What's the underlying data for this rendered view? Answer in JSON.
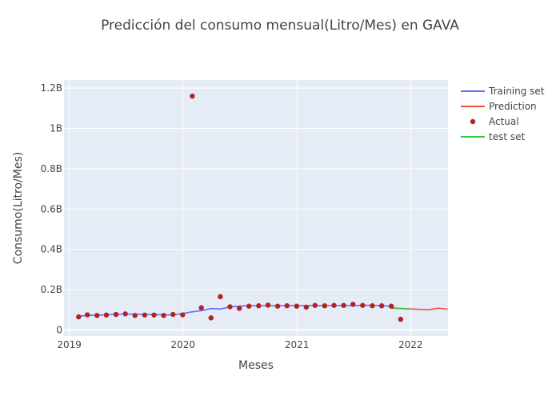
{
  "chart_data": {
    "type": "line",
    "title": "Predicción del consumo mensual(Litro/Mes) en GAVA",
    "xlabel": "Meses",
    "ylabel": "Consumo(Litro/Mes)",
    "xlim": [
      "2018-12-15",
      "2022-05-01"
    ],
    "ylim": [
      -0.03,
      1.24
    ],
    "y_unit_label": "B",
    "x_ticks": [
      {
        "date": "2019-01-01",
        "label": "2019"
      },
      {
        "date": "2020-01-01",
        "label": "2020"
      },
      {
        "date": "2021-01-01",
        "label": "2021"
      },
      {
        "date": "2022-01-01",
        "label": "2022"
      }
    ],
    "y_ticks": [
      {
        "value": 0,
        "label": "0"
      },
      {
        "value": 0.2,
        "label": "0.2B"
      },
      {
        "value": 0.4,
        "label": "0.4B"
      },
      {
        "value": 0.6,
        "label": "0.6B"
      },
      {
        "value": 0.8,
        "label": "0.8B"
      },
      {
        "value": 1.0,
        "label": "1B"
      },
      {
        "value": 1.2,
        "label": "1.2B"
      }
    ],
    "grid": true,
    "legend_position": "top-right",
    "series": [
      {
        "name": "Training set",
        "kind": "line",
        "color": "#636efa",
        "x": [
          "2019-01-31",
          "2019-02-28",
          "2019-03-31",
          "2019-04-30",
          "2019-05-31",
          "2019-06-30",
          "2019-07-31",
          "2019-08-31",
          "2019-09-30",
          "2019-10-31",
          "2019-11-30",
          "2019-12-31",
          "2020-01-31",
          "2020-02-29",
          "2020-03-31",
          "2020-04-30",
          "2020-05-31",
          "2020-06-30",
          "2020-07-31",
          "2020-08-31",
          "2020-09-30",
          "2020-10-31",
          "2020-11-30",
          "2020-12-31",
          "2021-01-31",
          "2021-02-28",
          "2021-03-31",
          "2021-04-30",
          "2021-05-31",
          "2021-06-30",
          "2021-07-31",
          "2021-08-31",
          "2021-09-30",
          "2021-10-31"
        ],
        "y": [
          0.068,
          0.072,
          0.073,
          0.075,
          0.077,
          0.079,
          0.078,
          0.077,
          0.076,
          0.075,
          0.074,
          0.082,
          0.09,
          0.096,
          0.106,
          0.104,
          0.114,
          0.118,
          0.12,
          0.121,
          0.12,
          0.121,
          0.12,
          0.121,
          0.121,
          0.12,
          0.121,
          0.121,
          0.121,
          0.121,
          0.122,
          0.122,
          0.12,
          0.118
        ]
      },
      {
        "name": "Prediction",
        "kind": "line",
        "color": "#ef553b",
        "x": [
          "2021-10-31",
          "2021-11-30",
          "2021-12-31",
          "2022-01-31",
          "2022-02-28",
          "2022-03-31",
          "2022-04-30"
        ],
        "y": [
          0.108,
          0.106,
          0.104,
          0.102,
          0.1,
          0.108,
          0.103
        ]
      },
      {
        "name": "Actual",
        "kind": "scatter",
        "color": "#b22222",
        "x": [
          "2019-01-31",
          "2019-02-28",
          "2019-03-31",
          "2019-04-30",
          "2019-05-31",
          "2019-06-30",
          "2019-07-31",
          "2019-08-31",
          "2019-09-30",
          "2019-10-31",
          "2019-11-30",
          "2019-12-31",
          "2020-01-31",
          "2020-02-29",
          "2020-03-31",
          "2020-04-30",
          "2020-05-31",
          "2020-06-30",
          "2020-07-31",
          "2020-08-31",
          "2020-09-30",
          "2020-10-31",
          "2020-11-30",
          "2020-12-31",
          "2021-01-31",
          "2021-02-28",
          "2021-03-31",
          "2021-04-30",
          "2021-05-31",
          "2021-06-30",
          "2021-07-31",
          "2021-08-31",
          "2021-09-30",
          "2021-10-31",
          "2021-11-30"
        ],
        "y": [
          0.065,
          0.075,
          0.072,
          0.074,
          0.077,
          0.08,
          0.072,
          0.074,
          0.074,
          0.072,
          0.077,
          0.075,
          1.16,
          0.11,
          0.06,
          0.165,
          0.115,
          0.107,
          0.118,
          0.12,
          0.123,
          0.118,
          0.12,
          0.118,
          0.113,
          0.122,
          0.12,
          0.122,
          0.122,
          0.127,
          0.122,
          0.12,
          0.12,
          0.118,
          0.053
        ]
      },
      {
        "name": "test set",
        "kind": "line",
        "color": "#2ecc40",
        "x": [
          "2021-10-31",
          "2021-11-30",
          "2021-12-31"
        ],
        "y": [
          0.11,
          0.107,
          0.104
        ]
      }
    ]
  }
}
